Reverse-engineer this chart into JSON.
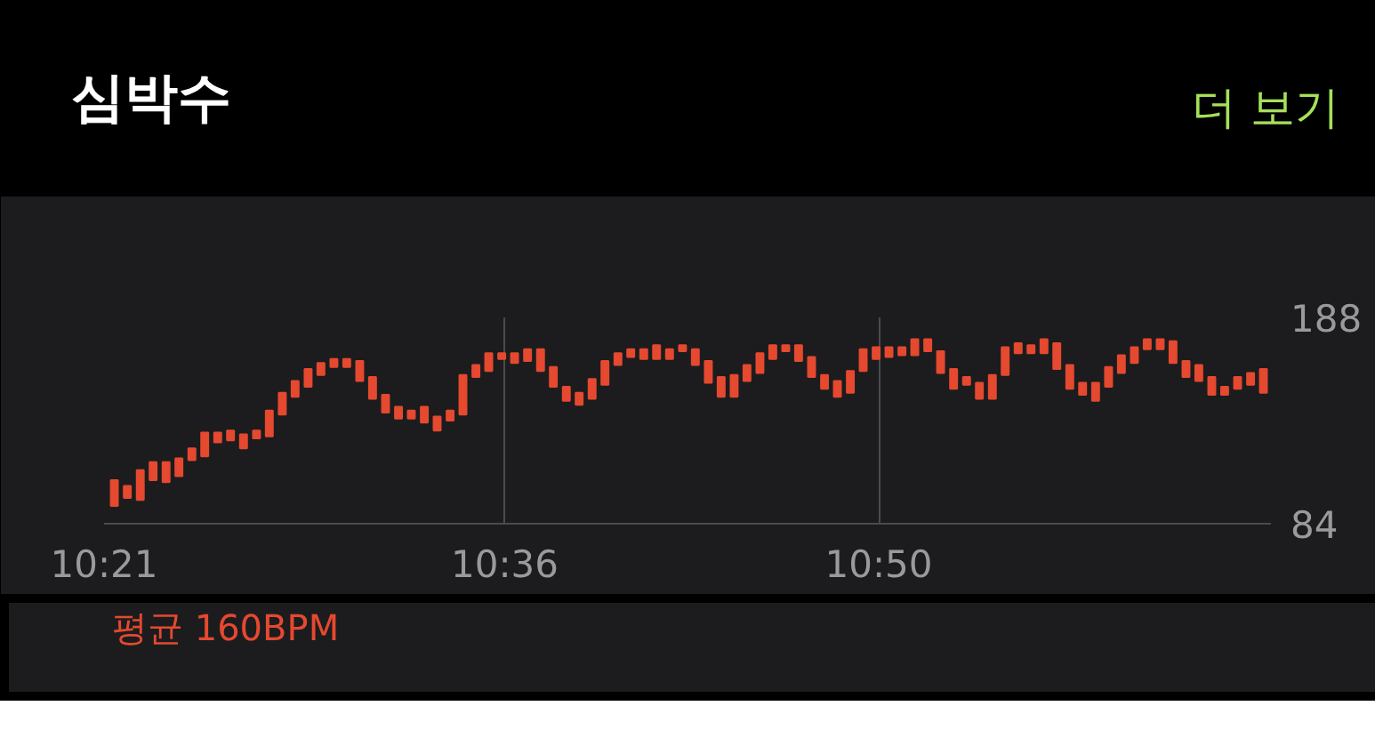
{
  "chart_data": {
    "type": "bar",
    "title": "심박수",
    "annotations": [
      "더 보기",
      "평균 160BPM"
    ],
    "x": [
      10.3564,
      10.3645,
      10.3726,
      10.3806,
      10.3887,
      10.3967,
      10.4048,
      10.4128,
      10.4209,
      10.4289,
      10.437,
      10.4451,
      10.4531,
      10.4612,
      10.4692,
      10.4773,
      10.4853,
      10.4934,
      10.5014,
      10.5095,
      10.5175,
      10.5256,
      10.5337,
      10.5417,
      10.5498,
      10.5578,
      10.5659,
      10.5739,
      10.582,
      10.59,
      10.5981,
      10.6061,
      10.6142,
      10.6223,
      10.6303,
      10.6384,
      10.6464,
      10.6545,
      10.6625,
      10.6706,
      10.6786,
      10.6867,
      10.6947,
      10.7028,
      10.7109,
      10.7189,
      10.727,
      10.735,
      10.7431,
      10.7511,
      10.7592,
      10.7672,
      10.7753,
      10.7833,
      10.7914,
      10.7995,
      10.8075,
      10.8156,
      10.8236,
      10.8317,
      10.8397,
      10.8478,
      10.8558,
      10.8639,
      10.8719,
      10.88,
      10.8881,
      10.8961,
      10.9042,
      10.9122,
      10.9203,
      10.9283,
      10.9364,
      10.9444,
      10.9525,
      10.9605,
      10.9686,
      10.9767,
      10.9847,
      10.9928,
      11.0008,
      11.0089,
      11.0169,
      11.025,
      11.033,
      11.0411,
      11.0491,
      11.0572,
      11.0653,
      11.0733
    ],
    "base": [
      93,
      97,
      96,
      106,
      105,
      108,
      116,
      118,
      125,
      126,
      122,
      127,
      128,
      139,
      148,
      153,
      159,
      163,
      163,
      156,
      147,
      140,
      137,
      137,
      135,
      131,
      136,
      139,
      158,
      161,
      167,
      165,
      166,
      161,
      153,
      146,
      144,
      147,
      154,
      164,
      168,
      167,
      167,
      167,
      171,
      164,
      155,
      148,
      148,
      156,
      160,
      167,
      171,
      166,
      158,
      152,
      148,
      150,
      161,
      167,
      168,
      169,
      169,
      171,
      160,
      152,
      154,
      147,
      147,
      159,
      170,
      170,
      170,
      162,
      152,
      149,
      146,
      153,
      160,
      165,
      172,
      172,
      165,
      158,
      156,
      149,
      149,
      152,
      154,
      150
    ],
    "values": [
      13,
      6,
      15,
      9,
      10,
      9,
      6,
      12,
      5,
      5,
      7,
      4,
      13,
      11,
      8,
      9,
      6,
      4,
      4,
      10,
      11,
      9,
      6,
      4,
      8,
      7,
      5,
      20,
      6,
      9,
      3,
      5,
      6,
      11,
      10,
      7,
      6,
      10,
      12,
      6,
      4,
      5,
      7,
      5,
      3,
      8,
      11,
      10,
      11,
      8,
      10,
      7,
      3,
      8,
      10,
      7,
      8,
      11,
      11,
      6,
      5,
      4,
      8,
      6,
      11,
      10,
      4,
      8,
      12,
      14,
      5,
      4,
      7,
      13,
      12,
      6,
      9,
      10,
      9,
      8,
      5,
      5,
      11,
      8,
      8,
      9,
      4,
      6,
      6,
      12
    ],
    "color": "#e5492f",
    "xlim": [
      10.35,
      11.078
    ],
    "xticks": [
      {
        "value": 10.35,
        "label": "10:21"
      },
      {
        "value": 10.6,
        "label": "10:36"
      },
      {
        "value": 10.8333,
        "label": "10:50"
      }
    ],
    "ylim": [
      84,
      188
    ],
    "yticks": [
      84,
      188
    ],
    "grid": "x"
  }
}
